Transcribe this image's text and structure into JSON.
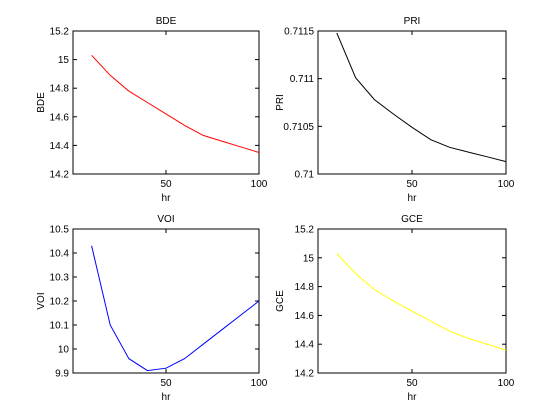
{
  "chart_data": [
    {
      "type": "line",
      "title": "BDE",
      "xlabel": "hr",
      "ylabel": "BDE",
      "xlim": [
        0,
        100
      ],
      "ylim": [
        14.2,
        15.2
      ],
      "xticks": [
        0,
        50,
        100
      ],
      "yticks": [
        14.2,
        14.4,
        14.6,
        14.8,
        15,
        15.2
      ],
      "xtick_labels": [
        "",
        "50",
        "100"
      ],
      "ytick_labels": [
        "14.2",
        "14.4",
        "14.6",
        "14.8",
        "15",
        "15.2"
      ],
      "color": "#ff0000",
      "x": [
        10,
        20,
        30,
        40,
        50,
        60,
        70,
        80,
        90,
        100
      ],
      "y": [
        15.03,
        14.89,
        14.78,
        14.7,
        14.62,
        14.54,
        14.47,
        14.43,
        14.39,
        14.35
      ]
    },
    {
      "type": "line",
      "title": "PRI",
      "xlabel": "hr",
      "ylabel": "PRI",
      "xlim": [
        0,
        100
      ],
      "ylim": [
        0.71,
        0.7115
      ],
      "xticks": [
        0,
        50,
        100
      ],
      "yticks": [
        0.71,
        0.7105,
        0.711,
        0.7115
      ],
      "xtick_labels": [
        "",
        "50",
        "100"
      ],
      "ytick_labels": [
        "0.71",
        "0.7105",
        "0.711",
        "0.7115"
      ],
      "color": "#000000",
      "x": [
        10,
        20,
        30,
        40,
        50,
        60,
        70,
        80,
        90,
        100
      ],
      "y": [
        0.71148,
        0.71101,
        0.71078,
        0.71063,
        0.71049,
        0.71036,
        0.71028,
        0.71023,
        0.71018,
        0.71013
      ]
    },
    {
      "type": "line",
      "title": "VOI",
      "xlabel": "hr",
      "ylabel": "VOI",
      "xlim": [
        0,
        100
      ],
      "ylim": [
        9.9,
        10.5
      ],
      "xticks": [
        0,
        50,
        100
      ],
      "yticks": [
        9.9,
        10,
        10.1,
        10.2,
        10.3,
        10.4,
        10.5
      ],
      "xtick_labels": [
        "",
        "50",
        "100"
      ],
      "ytick_labels": [
        "9.9",
        "10",
        "10.1",
        "10.2",
        "10.3",
        "10.4",
        "10.5"
      ],
      "color": "#0000ff",
      "x": [
        10,
        20,
        30,
        40,
        50,
        60,
        70,
        80,
        90,
        100
      ],
      "y": [
        10.43,
        10.1,
        9.96,
        9.91,
        9.92,
        9.96,
        10.02,
        10.08,
        10.14,
        10.2
      ]
    },
    {
      "type": "line",
      "title": "GCE",
      "xlabel": "hr",
      "ylabel": "GCE",
      "xlim": [
        0,
        100
      ],
      "ylim": [
        14.2,
        15.2
      ],
      "xticks": [
        0,
        50,
        100
      ],
      "yticks": [
        14.2,
        14.4,
        14.6,
        14.8,
        15,
        15.2
      ],
      "xtick_labels": [
        "",
        "50",
        "100"
      ],
      "ytick_labels": [
        "14.2",
        "14.4",
        "14.6",
        "14.8",
        "15",
        "15.2"
      ],
      "color": "#ffff00",
      "x": [
        10,
        20,
        30,
        40,
        50,
        60,
        70,
        80,
        90,
        100
      ],
      "y": [
        15.03,
        14.89,
        14.78,
        14.7,
        14.63,
        14.56,
        14.49,
        14.44,
        14.4,
        14.36
      ]
    }
  ]
}
